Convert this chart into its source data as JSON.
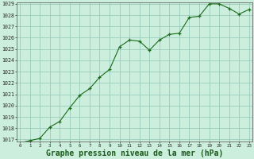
{
  "x": [
    0,
    1,
    2,
    3,
    4,
    5,
    6,
    7,
    8,
    9,
    10,
    11,
    12,
    13,
    14,
    15,
    16,
    17,
    18,
    19,
    20,
    21,
    22,
    23
  ],
  "y": [
    1016.7,
    1016.9,
    1017.1,
    1018.1,
    1018.6,
    1019.8,
    1020.9,
    1021.5,
    1022.5,
    1023.2,
    1025.2,
    1025.8,
    1025.7,
    1024.9,
    1025.8,
    1026.3,
    1026.4,
    1027.8,
    1027.9,
    1029.0,
    1029.0,
    1028.6,
    1028.1,
    1028.5
  ],
  "line_color": "#1a6b1a",
  "marker_color": "#1a6b1a",
  "bg_color": "#cceedd",
  "grid_color": "#99ccbb",
  "xlabel": "Graphe pression niveau de la mer (hPa)",
  "xlabel_fontsize": 7,
  "ylim_min": 1017,
  "ylim_max": 1029,
  "ytick_step": 1,
  "xlim_min": 0,
  "xlim_max": 23
}
